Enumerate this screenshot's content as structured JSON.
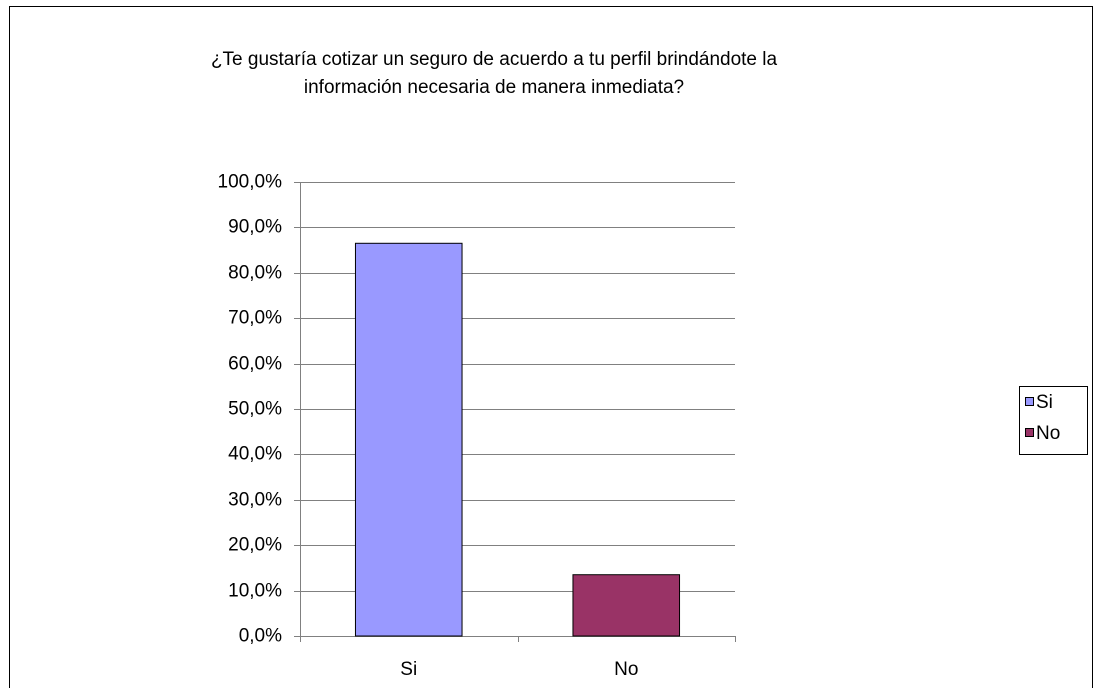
{
  "chart_data": {
    "type": "bar",
    "title": [
      "¿Te gustaría cotizar un seguro de acuerdo a tu perfil brindándote la",
      "información necesaria de manera inmediata?"
    ],
    "categories": [
      "Si",
      "No"
    ],
    "values": [
      86.5,
      13.5
    ],
    "colors": [
      "#9999ff",
      "#993366"
    ],
    "ylim": [
      0,
      100
    ],
    "yticks": [
      {
        "value": 0,
        "label": "0,0%"
      },
      {
        "value": 10,
        "label": "10,0%"
      },
      {
        "value": 20,
        "label": "20,0%"
      },
      {
        "value": 30,
        "label": "30,0%"
      },
      {
        "value": 40,
        "label": "40,0%"
      },
      {
        "value": 50,
        "label": "50,0%"
      },
      {
        "value": 60,
        "label": "60,0%"
      },
      {
        "value": 70,
        "label": "70,0%"
      },
      {
        "value": 80,
        "label": "80,0%"
      },
      {
        "value": 90,
        "label": "90,0%"
      },
      {
        "value": 100,
        "label": "100,0%"
      }
    ],
    "grid": true,
    "legend": "right"
  }
}
